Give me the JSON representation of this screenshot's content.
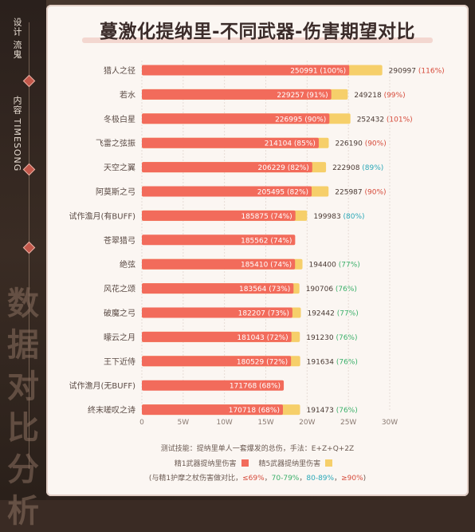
{
  "sidebar": {
    "top_text": "设计 流鬼",
    "sub_text": "内容 TIMESONG",
    "watermark": "数据对比分析"
  },
  "colors": {
    "r1": "#f26b5b",
    "r5": "#f6cf6a",
    "pct_red": "#d64a3a",
    "pct_green": "#3bb06a",
    "pct_cyan": "#2aa8b8"
  },
  "chart_data": {
    "type": "bar",
    "orientation": "horizontal",
    "title": "蔓激化提纳里-不同武器-伤害期望对比",
    "categories": [
      "猎人之径",
      "若水",
      "冬极白星",
      "飞雷之弦振",
      "天空之翼",
      "阿莫斯之弓",
      "试作澹月(有BUFF)",
      "苍翠猎弓",
      "绝弦",
      "风花之颂",
      "破魔之弓",
      "曚云之月",
      "王下近侍",
      "试作澹月(无BUFF)",
      "终末嗟叹之诗"
    ],
    "series": [
      {
        "name": "精1武器提纳里伤害",
        "values": [
          250991,
          229257,
          226995,
          214104,
          206229,
          205495,
          185875,
          185562,
          185410,
          183564,
          182207,
          181043,
          180529,
          171768,
          170718
        ],
        "labels": [
          "(100%)",
          "(91%)",
          "(90%)",
          "(85%)",
          "(82%)",
          "(82%)",
          "(74%)",
          "(74%)",
          "(74%)",
          "(73%)",
          "(73%)",
          "(72%)",
          "(72%)",
          "(68%)",
          "(68%)"
        ]
      },
      {
        "name": "精5武器提纳里伤害",
        "values": [
          290997,
          249218,
          252432,
          226190,
          222908,
          225987,
          199983,
          null,
          194400,
          190706,
          192442,
          191230,
          191634,
          null,
          191473
        ],
        "labels": [
          "(116%)",
          "(99%)",
          "(101%)",
          "(90%)",
          "(89%)",
          "(90%)",
          "(80%)",
          "",
          "(77%)",
          "(76%)",
          "(77%)",
          "(76%)",
          "(76%)",
          "",
          "(76%)"
        ],
        "label_colors": [
          "red",
          "red",
          "red",
          "red",
          "cyan",
          "red",
          "cyan",
          "",
          "green",
          "green",
          "green",
          "green",
          "green",
          "",
          "green"
        ]
      }
    ],
    "x_ticks": [
      "0",
      "5W",
      "10W",
      "15W",
      "20W",
      "25W",
      "30W"
    ],
    "xlim": [
      0,
      300000
    ],
    "grid": true
  },
  "footer": {
    "line1": "测试技能：提纳里单人一套爆发的总伤，手法：E+Z+Q+2Z",
    "legend_r1": "精1武器提纳里伤害",
    "legend_r5": "精5武器提纳里伤害",
    "line3_prefix": "(与精1护摩之杖伤害做对比，",
    "t1": "≤69%",
    "t2": "70-79%",
    "t3": "80-89%",
    "t4": "≥90%",
    "line3_suffix": ")"
  }
}
